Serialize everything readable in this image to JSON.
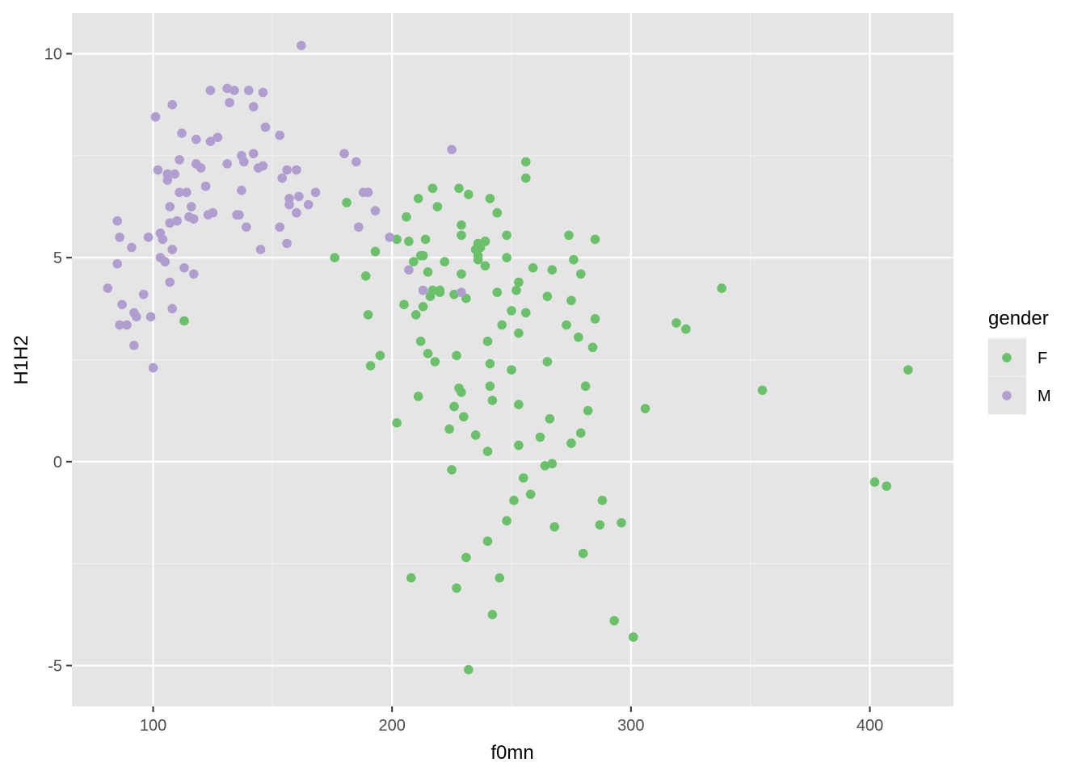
{
  "chart_data": {
    "type": "scatter",
    "xlabel": "f0mn",
    "ylabel": "H1H2",
    "xlim": [
      66,
      435
    ],
    "ylim": [
      -6,
      11
    ],
    "x_ticks": [
      100,
      200,
      300,
      400
    ],
    "y_ticks": [
      -5,
      0,
      5,
      10
    ],
    "x_tick_labels": [
      "100",
      "200",
      "300",
      "400"
    ],
    "y_tick_labels": [
      "-5",
      "0",
      "5",
      "10"
    ],
    "grid": true,
    "background": "#e5e5e5",
    "legend": {
      "title": "gender",
      "position": "right",
      "entries": [
        {
          "label": "F",
          "color": "#6ac16a"
        },
        {
          "label": "M",
          "color": "#b09ed0"
        }
      ]
    },
    "series": [
      {
        "name": "F",
        "color": "#6ac16a",
        "points": [
          [
            113,
            3.45
          ],
          [
            176,
            5.0
          ],
          [
            181,
            6.35
          ],
          [
            189,
            4.55
          ],
          [
            190,
            3.6
          ],
          [
            191,
            2.35
          ],
          [
            193,
            5.15
          ],
          [
            195,
            2.6
          ],
          [
            202,
            5.45
          ],
          [
            202,
            0.95
          ],
          [
            205,
            3.85
          ],
          [
            206,
            6.0
          ],
          [
            207,
            5.4
          ],
          [
            208,
            -2.85
          ],
          [
            209,
            4.9
          ],
          [
            210,
            3.6
          ],
          [
            211,
            1.6
          ],
          [
            211,
            6.45
          ],
          [
            212,
            5.05
          ],
          [
            212,
            2.95
          ],
          [
            213,
            3.8
          ],
          [
            213,
            5.05
          ],
          [
            214,
            5.45
          ],
          [
            215,
            2.65
          ],
          [
            215,
            4.65
          ],
          [
            216,
            4.05
          ],
          [
            217,
            6.7
          ],
          [
            217,
            4.2
          ],
          [
            218,
            2.45
          ],
          [
            219,
            6.25
          ],
          [
            220,
            4.15
          ],
          [
            220,
            4.2
          ],
          [
            222,
            4.9
          ],
          [
            224,
            0.8
          ],
          [
            225,
            -0.2
          ],
          [
            226,
            1.35
          ],
          [
            226,
            4.1
          ],
          [
            227,
            2.6
          ],
          [
            227,
            -3.1
          ],
          [
            228,
            6.7
          ],
          [
            228,
            1.8
          ],
          [
            229,
            5.8
          ],
          [
            229,
            5.55
          ],
          [
            229,
            4.6
          ],
          [
            229,
            1.7
          ],
          [
            230,
            1.1
          ],
          [
            231,
            -2.35
          ],
          [
            231,
            4.0
          ],
          [
            232,
            -5.1
          ],
          [
            232,
            6.55
          ],
          [
            235,
            0.65
          ],
          [
            235,
            5.2
          ],
          [
            236,
            4.95
          ],
          [
            236,
            5.05
          ],
          [
            236,
            5.35
          ],
          [
            237,
            5.25
          ],
          [
            239,
            5.4
          ],
          [
            239,
            4.8
          ],
          [
            240,
            2.95
          ],
          [
            240,
            0.25
          ],
          [
            240,
            -1.95
          ],
          [
            241,
            6.45
          ],
          [
            241,
            1.85
          ],
          [
            241,
            2.4
          ],
          [
            242,
            1.5
          ],
          [
            242,
            -3.75
          ],
          [
            244,
            4.15
          ],
          [
            244,
            6.1
          ],
          [
            245,
            -2.85
          ],
          [
            246,
            3.35
          ],
          [
            248,
            -1.45
          ],
          [
            248,
            5.55
          ],
          [
            248,
            5.0
          ],
          [
            250,
            2.25
          ],
          [
            250,
            3.7
          ],
          [
            251,
            -0.95
          ],
          [
            252,
            4.2
          ],
          [
            253,
            3.15
          ],
          [
            253,
            0.4
          ],
          [
            253,
            1.4
          ],
          [
            253,
            4.4
          ],
          [
            255,
            -0.4
          ],
          [
            256,
            3.65
          ],
          [
            256,
            7.35
          ],
          [
            256,
            6.95
          ],
          [
            258,
            -0.8
          ],
          [
            259,
            4.75
          ],
          [
            262,
            0.6
          ],
          [
            264,
            -0.1
          ],
          [
            265,
            4.05
          ],
          [
            265,
            2.45
          ],
          [
            266,
            1.05
          ],
          [
            267,
            -0.05
          ],
          [
            267,
            4.7
          ],
          [
            268,
            -1.6
          ],
          [
            273,
            3.35
          ],
          [
            274,
            5.55
          ],
          [
            275,
            0.45
          ],
          [
            275,
            3.95
          ],
          [
            276,
            4.95
          ],
          [
            278,
            3.05
          ],
          [
            279,
            0.7
          ],
          [
            279,
            4.6
          ],
          [
            280,
            -2.25
          ],
          [
            281,
            1.85
          ],
          [
            282,
            1.25
          ],
          [
            284,
            2.8
          ],
          [
            285,
            5.45
          ],
          [
            285,
            3.5
          ],
          [
            287,
            -1.55
          ],
          [
            288,
            -0.95
          ],
          [
            293,
            -3.9
          ],
          [
            296,
            -1.5
          ],
          [
            301,
            -4.3
          ],
          [
            306,
            1.3
          ],
          [
            319,
            3.4
          ],
          [
            323,
            3.25
          ],
          [
            338,
            4.25
          ],
          [
            355,
            1.75
          ],
          [
            402,
            -0.5
          ],
          [
            407,
            -0.6
          ],
          [
            416,
            2.25
          ]
        ]
      },
      {
        "name": "M",
        "color": "#b09ed0",
        "points": [
          [
            81,
            4.25
          ],
          [
            85,
            5.9
          ],
          [
            85,
            4.85
          ],
          [
            86,
            5.5
          ],
          [
            86,
            3.35
          ],
          [
            87,
            3.85
          ],
          [
            89,
            3.35
          ],
          [
            91,
            5.25
          ],
          [
            92,
            3.65
          ],
          [
            92,
            2.85
          ],
          [
            93,
            3.55
          ],
          [
            96,
            4.1
          ],
          [
            98,
            5.5
          ],
          [
            99,
            3.55
          ],
          [
            100,
            2.3
          ],
          [
            101,
            8.45
          ],
          [
            102,
            7.15
          ],
          [
            103,
            5.6
          ],
          [
            103,
            5.0
          ],
          [
            104,
            5.45
          ],
          [
            105,
            4.9
          ],
          [
            106,
            7.05
          ],
          [
            106,
            6.9
          ],
          [
            107,
            6.25
          ],
          [
            107,
            5.85
          ],
          [
            107,
            4.4
          ],
          [
            108,
            8.75
          ],
          [
            108,
            5.2
          ],
          [
            108,
            3.75
          ],
          [
            109,
            7.05
          ],
          [
            110,
            5.9
          ],
          [
            111,
            6.6
          ],
          [
            111,
            7.4
          ],
          [
            112,
            8.05
          ],
          [
            113,
            4.75
          ],
          [
            114,
            6.6
          ],
          [
            115,
            6.0
          ],
          [
            116,
            6.25
          ],
          [
            117,
            5.95
          ],
          [
            117,
            4.6
          ],
          [
            118,
            7.9
          ],
          [
            118,
            7.3
          ],
          [
            120,
            7.2
          ],
          [
            122,
            6.75
          ],
          [
            123,
            6.05
          ],
          [
            124,
            7.85
          ],
          [
            124,
            9.1
          ],
          [
            125,
            6.1
          ],
          [
            127,
            7.95
          ],
          [
            131,
            9.15
          ],
          [
            131,
            7.3
          ],
          [
            132,
            8.8
          ],
          [
            134,
            9.1
          ],
          [
            135,
            6.05
          ],
          [
            136,
            6.05
          ],
          [
            137,
            6.65
          ],
          [
            137,
            7.5
          ],
          [
            138,
            7.35
          ],
          [
            139,
            5.75
          ],
          [
            140,
            9.1
          ],
          [
            142,
            7.55
          ],
          [
            142,
            8.7
          ],
          [
            144,
            7.2
          ],
          [
            145,
            5.2
          ],
          [
            146,
            7.25
          ],
          [
            146,
            9.05
          ],
          [
            147,
            8.2
          ],
          [
            153,
            8.0
          ],
          [
            153,
            5.75
          ],
          [
            154,
            6.95
          ],
          [
            156,
            5.35
          ],
          [
            156,
            7.15
          ],
          [
            157,
            6.3
          ],
          [
            157,
            6.45
          ],
          [
            160,
            7.15
          ],
          [
            160,
            6.1
          ],
          [
            161,
            6.5
          ],
          [
            162,
            10.2
          ],
          [
            165,
            6.3
          ],
          [
            168,
            6.6
          ],
          [
            180,
            7.55
          ],
          [
            185,
            7.35
          ],
          [
            186,
            5.75
          ],
          [
            188,
            6.6
          ],
          [
            190,
            6.6
          ],
          [
            193,
            6.15
          ],
          [
            199,
            5.5
          ],
          [
            207,
            4.7
          ],
          [
            213,
            4.2
          ],
          [
            225,
            7.65
          ],
          [
            229,
            4.15
          ]
        ]
      }
    ]
  }
}
